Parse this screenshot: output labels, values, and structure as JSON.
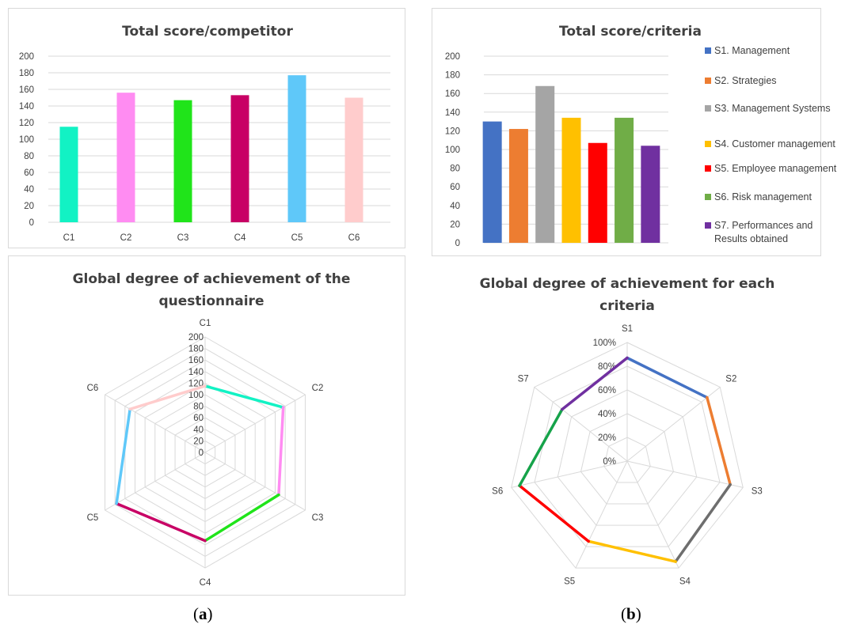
{
  "chart_data": [
    {
      "id": "tl",
      "type": "bar",
      "title": "Total score/competitor",
      "categories": [
        "C1",
        "C2",
        "C3",
        "C4",
        "C5",
        "C6"
      ],
      "values": [
        115,
        156,
        147,
        153,
        177,
        150
      ],
      "colors": [
        "#12f2c4",
        "#ff8cf2",
        "#20e41a",
        "#c80065",
        "#5fc8f9",
        "#ffcccc"
      ],
      "ylim": [
        0,
        200
      ],
      "yticks": [
        0,
        20,
        40,
        60,
        80,
        100,
        120,
        140,
        160,
        180,
        200
      ],
      "grid": true
    },
    {
      "id": "tr",
      "type": "bar",
      "title": "Total score/criteria",
      "series": [
        {
          "name": "S1. Management",
          "value": 130,
          "color": "#4472c4"
        },
        {
          "name": "S2. Strategies",
          "value": 122,
          "color": "#ed7d31"
        },
        {
          "name": "S3. Management Systems",
          "value": 168,
          "color": "#a5a5a5"
        },
        {
          "name": "S4. Customer management",
          "value": 134,
          "color": "#ffc000"
        },
        {
          "name": "S5. Employee management",
          "value": 107,
          "color": "#ff0000"
        },
        {
          "name": "S6. Risk management",
          "value": 134,
          "color": "#70ad47"
        },
        {
          "name": "S7. Performances and Results obtained",
          "value": 104,
          "color": "#7030a0"
        }
      ],
      "ylim": [
        0,
        200
      ],
      "yticks": [
        0,
        20,
        40,
        60,
        80,
        100,
        120,
        140,
        160,
        180,
        200
      ],
      "legend": "right",
      "grid": true
    },
    {
      "id": "bl",
      "type": "radar",
      "title": "Global degree of achievement of the questionnaire",
      "axes": [
        "C1",
        "C2",
        "C3",
        "C4",
        "C5",
        "C6"
      ],
      "values": [
        115,
        156,
        147,
        153,
        177,
        150
      ],
      "colors": [
        "#12f2c4",
        "#ff8cf2",
        "#20e41a",
        "#c80065",
        "#5fc8f9",
        "#ffcccc"
      ],
      "rlim": [
        0,
        200
      ],
      "rticks": [
        "0",
        "20",
        "40",
        "60",
        "80",
        "100",
        "120",
        "140",
        "160",
        "180",
        "200"
      ]
    },
    {
      "id": "br",
      "type": "radar",
      "title": "Global degree of achievement for each criteria",
      "axes": [
        "S1",
        "S2",
        "S3",
        "S4",
        "S5",
        "S6",
        "S7"
      ],
      "values": [
        0.87,
        0.86,
        0.89,
        0.94,
        0.75,
        0.93,
        0.7
      ],
      "colors": [
        "#4472c4",
        "#ed7d31",
        "#6e6e6e",
        "#ffc000",
        "#ff0000",
        "#16a34a",
        "#7030a0"
      ],
      "rlim": [
        0,
        1
      ],
      "rticks": [
        "0%",
        "20%",
        "40%",
        "60%",
        "80%",
        "100%"
      ]
    }
  ],
  "captions": {
    "a": "a",
    "b": "b"
  }
}
